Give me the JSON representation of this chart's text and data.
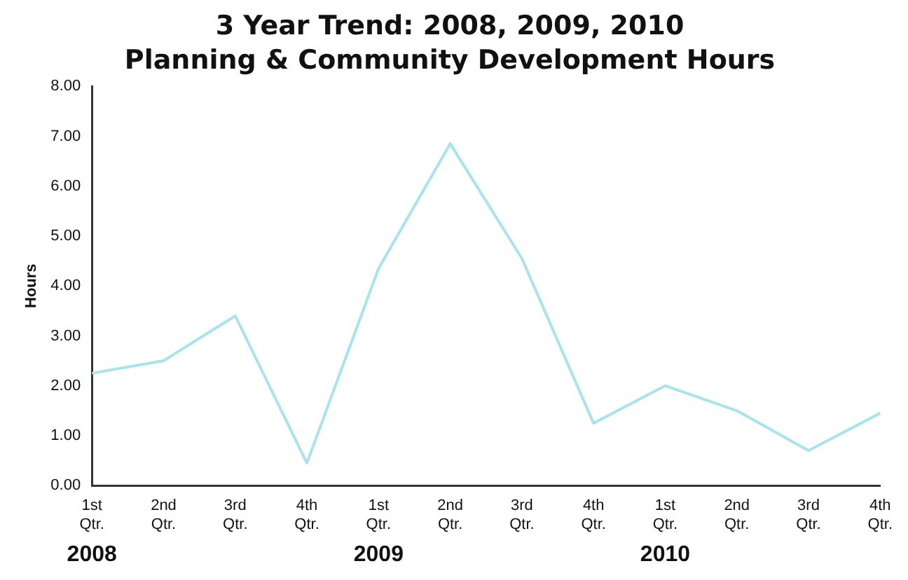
{
  "chart_data": {
    "type": "line",
    "title": "3 Year Trend: 2008, 2009, 2010",
    "subtitle": "Planning & Community Development Hours",
    "ylabel": "Hours",
    "categories": [
      "1st Qtr.",
      "2nd Qtr.",
      "3rd Qtr.",
      "4th Qtr.",
      "1st Qtr.",
      "2nd Qtr.",
      "3rd Qtr.",
      "4th Qtr.",
      "1st Qtr.",
      "2nd Qtr.",
      "3rd Qtr.",
      "4th Qtr."
    ],
    "series": [
      {
        "color": "#a8e4ee",
        "values": [
          2.25,
          2.5,
          3.4,
          0.45,
          4.35,
          6.85,
          4.55,
          1.25,
          2.0,
          1.5,
          0.7,
          1.45
        ]
      }
    ],
    "ylim": [
      0,
      8
    ],
    "yticks": [
      {
        "value": 0,
        "label": "0.00"
      },
      {
        "value": 1,
        "label": "1.00"
      },
      {
        "value": 2,
        "label": "2.00"
      },
      {
        "value": 3,
        "label": "3.00"
      },
      {
        "value": 4,
        "label": "4.00"
      },
      {
        "value": 5,
        "label": "5.00"
      },
      {
        "value": 6,
        "label": "6.00"
      },
      {
        "value": 7,
        "label": "7.00"
      },
      {
        "value": 8,
        "label": "8.00"
      }
    ],
    "annotations": [
      "2008",
      "2009",
      "2010"
    ],
    "grid": false,
    "legend": false,
    "marker": "none",
    "line_style": "solid"
  }
}
